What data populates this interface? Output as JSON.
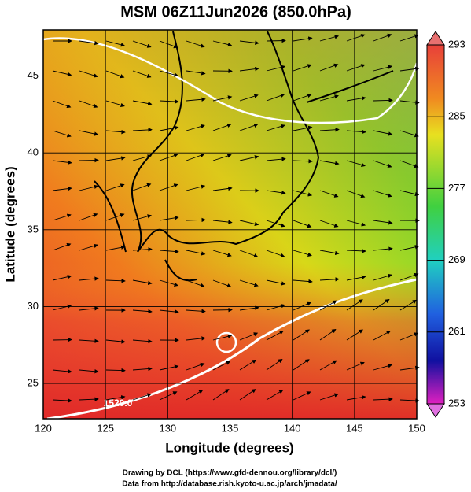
{
  "title": "MSM 06Z11Jun2026 (850.0hPa)",
  "x_axis": {
    "label": "Longitude (degrees)",
    "lim": [
      120,
      150
    ],
    "ticks": [
      120,
      125,
      130,
      135,
      140,
      145,
      150
    ]
  },
  "y_axis": {
    "label": "Latitude  (degrees)",
    "lim": [
      22.7,
      48
    ],
    "ticks": [
      25,
      30,
      35,
      40,
      45
    ]
  },
  "colorbar": {
    "lim": [
      253,
      293
    ],
    "ticks": [
      253,
      261,
      269,
      277,
      285,
      293
    ]
  },
  "contour_label": "1520.0",
  "credits": [
    "Drawing by DCL (https://www.gfd-dennou.org/library/dcl/)",
    "Data from http://database.rish.kyoto-u.ac.jp/arch/jmadata/"
  ]
}
